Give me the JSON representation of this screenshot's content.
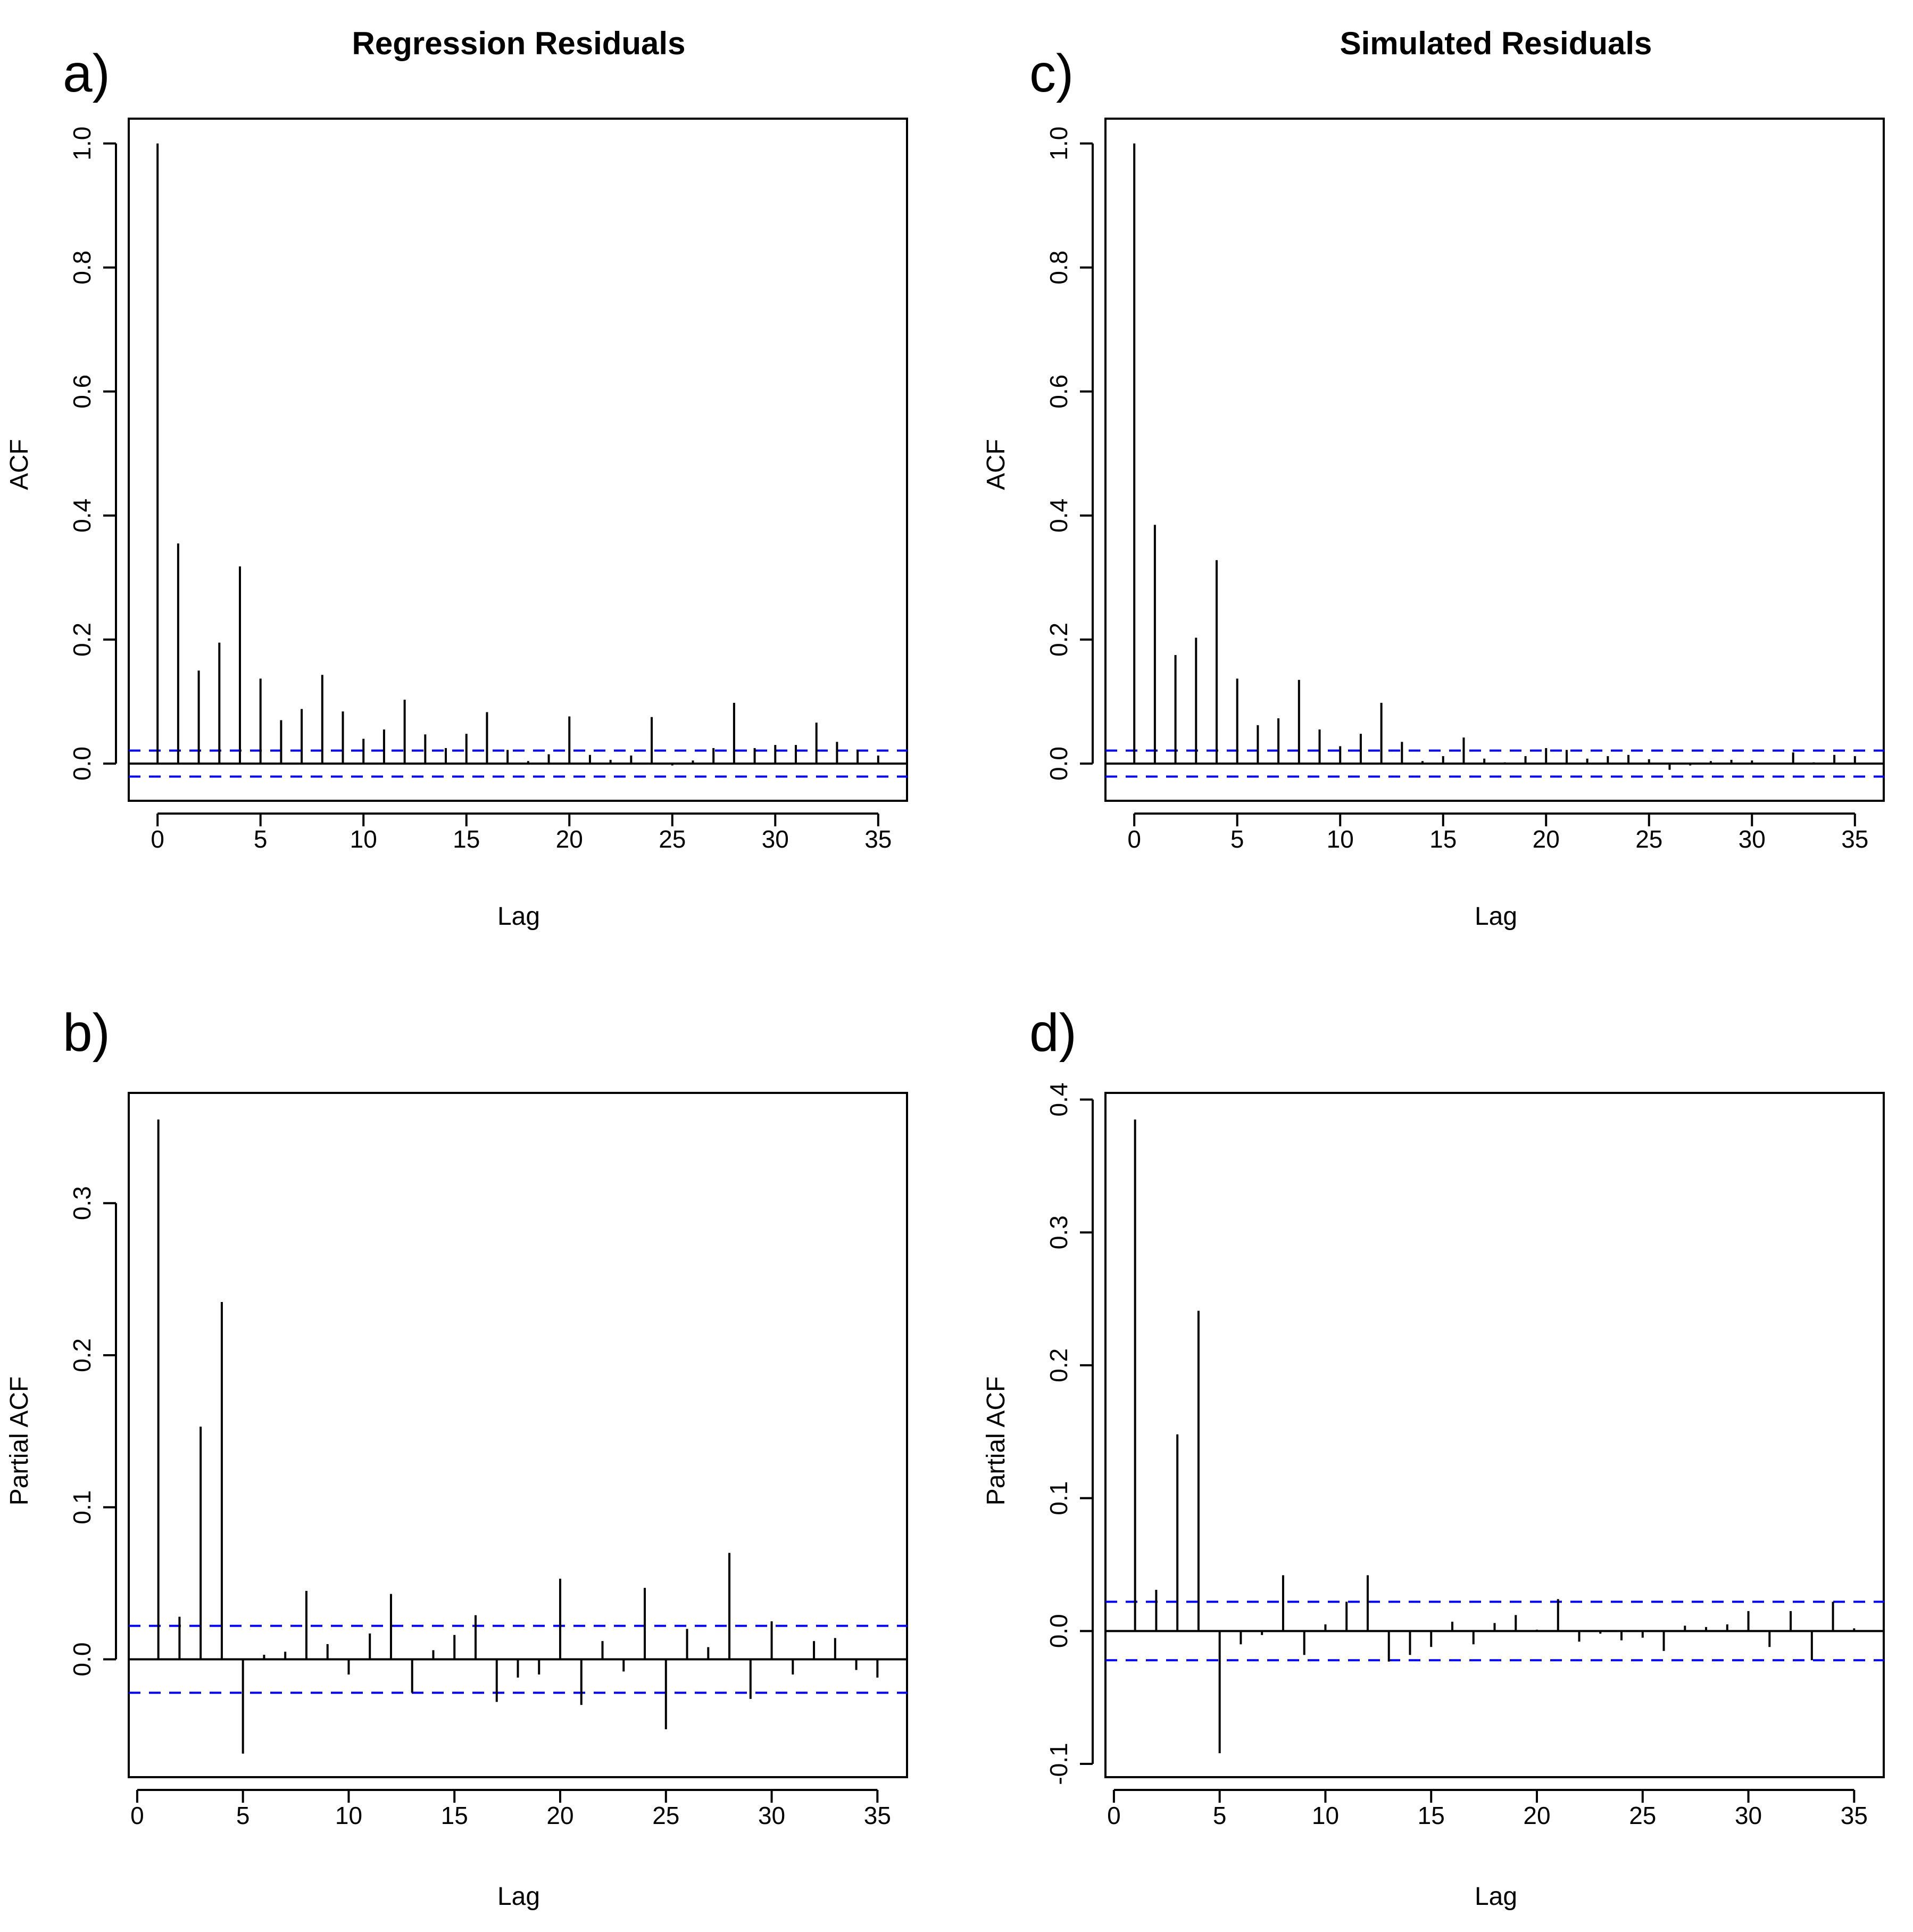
{
  "colors": {
    "stem": "#000000",
    "ci_line": "#0000ee",
    "frame": "#000000",
    "background": "#ffffff"
  },
  "chart_data": [
    {
      "id": "a",
      "type": "bar",
      "subtype": "acf-stem",
      "panel_label": "a)",
      "title": "Regression Residuals",
      "xlabel": "Lag",
      "ylabel": "ACF",
      "xlim": [
        -1.4,
        36.4
      ],
      "ylim": [
        -0.06,
        1.04
      ],
      "xticks": [
        0,
        5,
        10,
        15,
        20,
        25,
        30,
        35
      ],
      "xtick_labels": [
        "0",
        "5",
        "10",
        "15",
        "20",
        "25",
        "30",
        "35"
      ],
      "yticks": [
        0.0,
        0.2,
        0.4,
        0.6,
        0.8,
        1.0
      ],
      "ytick_labels": [
        "0.0",
        "0.2",
        "0.4",
        "0.6",
        "0.8",
        "1.0"
      ],
      "ci": 0.021,
      "lags": [
        0,
        1,
        2,
        3,
        4,
        5,
        6,
        7,
        8,
        9,
        10,
        11,
        12,
        13,
        14,
        15,
        16,
        17,
        18,
        19,
        20,
        21,
        22,
        23,
        24,
        25,
        26,
        27,
        28,
        29,
        30,
        31,
        32,
        33,
        34,
        35
      ],
      "values": [
        1.0,
        0.355,
        0.15,
        0.195,
        0.318,
        0.137,
        0.07,
        0.088,
        0.143,
        0.084,
        0.04,
        0.055,
        0.103,
        0.047,
        0.025,
        0.048,
        0.083,
        0.022,
        0.004,
        0.015,
        0.076,
        0.014,
        0.006,
        0.013,
        0.075,
        -0.003,
        0.005,
        0.025,
        0.098,
        0.025,
        0.03,
        0.03,
        0.066,
        0.035,
        0.022,
        0.013
      ]
    },
    {
      "id": "b",
      "type": "bar",
      "subtype": "pacf-stem",
      "panel_label": "b)",
      "title": "",
      "xlabel": "Lag",
      "ylabel": "Partial ACF",
      "xlim": [
        -0.4,
        36.4
      ],
      "ylim": [
        -0.0775,
        0.3725
      ],
      "xticks": [
        0,
        5,
        10,
        15,
        20,
        25,
        30,
        35
      ],
      "xtick_labels": [
        "0",
        "5",
        "10",
        "15",
        "20",
        "25",
        "30",
        "35"
      ],
      "yticks": [
        0.0,
        0.1,
        0.2,
        0.3
      ],
      "ytick_labels": [
        "0.0",
        "0.1",
        "0.2",
        "0.3"
      ],
      "ci": 0.022,
      "lags": [
        1,
        2,
        3,
        4,
        5,
        6,
        7,
        8,
        9,
        10,
        11,
        12,
        13,
        14,
        15,
        16,
        17,
        18,
        19,
        20,
        21,
        22,
        23,
        24,
        25,
        26,
        27,
        28,
        29,
        30,
        31,
        32,
        33,
        34,
        35
      ],
      "values": [
        0.355,
        0.028,
        0.153,
        0.235,
        -0.062,
        0.003,
        0.005,
        0.045,
        0.01,
        -0.01,
        0.017,
        0.043,
        -0.022,
        0.006,
        0.016,
        0.029,
        -0.028,
        -0.012,
        -0.01,
        0.053,
        -0.03,
        0.012,
        -0.008,
        0.047,
        -0.046,
        0.02,
        0.008,
        0.07,
        -0.026,
        0.025,
        -0.01,
        0.012,
        0.014,
        -0.007,
        -0.012
      ]
    },
    {
      "id": "c",
      "type": "bar",
      "subtype": "acf-stem",
      "panel_label": "c)",
      "title": "Simulated Residuals",
      "xlabel": "Lag",
      "ylabel": "ACF",
      "xlim": [
        -1.4,
        36.4
      ],
      "ylim": [
        -0.06,
        1.04
      ],
      "xticks": [
        0,
        5,
        10,
        15,
        20,
        25,
        30,
        35
      ],
      "xtick_labels": [
        "0",
        "5",
        "10",
        "15",
        "20",
        "25",
        "30",
        "35"
      ],
      "yticks": [
        0.0,
        0.2,
        0.4,
        0.6,
        0.8,
        1.0
      ],
      "ytick_labels": [
        "0.0",
        "0.2",
        "0.4",
        "0.6",
        "0.8",
        "1.0"
      ],
      "ci": 0.021,
      "lags": [
        0,
        1,
        2,
        3,
        4,
        5,
        6,
        7,
        8,
        9,
        10,
        11,
        12,
        13,
        14,
        15,
        16,
        17,
        18,
        19,
        20,
        21,
        22,
        23,
        24,
        25,
        26,
        27,
        28,
        29,
        30,
        31,
        32,
        33,
        34,
        35
      ],
      "values": [
        1.0,
        0.385,
        0.175,
        0.203,
        0.328,
        0.137,
        0.062,
        0.073,
        0.135,
        0.055,
        0.028,
        0.048,
        0.098,
        0.035,
        0.004,
        0.012,
        0.042,
        0.008,
        0.002,
        0.012,
        0.025,
        0.022,
        0.008,
        0.012,
        0.014,
        0.007,
        -0.01,
        -0.003,
        0.004,
        0.006,
        0.005,
        0.0,
        0.018,
        0.002,
        0.014,
        0.012
      ]
    },
    {
      "id": "d",
      "type": "bar",
      "subtype": "pacf-stem",
      "panel_label": "d)",
      "title": "",
      "xlabel": "Lag",
      "ylabel": "Partial ACF",
      "xlim": [
        -0.4,
        36.4
      ],
      "ylim": [
        -0.11,
        0.405
      ],
      "xticks": [
        0,
        5,
        10,
        15,
        20,
        25,
        30,
        35
      ],
      "xtick_labels": [
        "0",
        "5",
        "10",
        "15",
        "20",
        "25",
        "30",
        "35"
      ],
      "yticks": [
        -0.1,
        0.0,
        0.1,
        0.2,
        0.3,
        0.4
      ],
      "ytick_labels": [
        "-0.1",
        "0.0",
        "0.1",
        "0.2",
        "0.3",
        "0.4"
      ],
      "ci": 0.022,
      "lags": [
        1,
        2,
        3,
        4,
        5,
        6,
        7,
        8,
        9,
        10,
        11,
        12,
        13,
        14,
        15,
        16,
        17,
        18,
        19,
        20,
        21,
        22,
        23,
        24,
        25,
        26,
        27,
        28,
        29,
        30,
        31,
        32,
        33,
        34,
        35
      ],
      "values": [
        0.385,
        0.031,
        0.148,
        0.241,
        -0.092,
        -0.01,
        -0.003,
        0.042,
        -0.018,
        0.005,
        0.022,
        0.042,
        -0.023,
        -0.018,
        -0.012,
        0.007,
        -0.01,
        0.006,
        0.012,
        0.001,
        0.024,
        -0.008,
        -0.002,
        -0.007,
        -0.005,
        -0.015,
        0.004,
        0.003,
        0.005,
        0.015,
        -0.012,
        0.015,
        -0.022,
        0.022,
        0.002
      ]
    }
  ]
}
